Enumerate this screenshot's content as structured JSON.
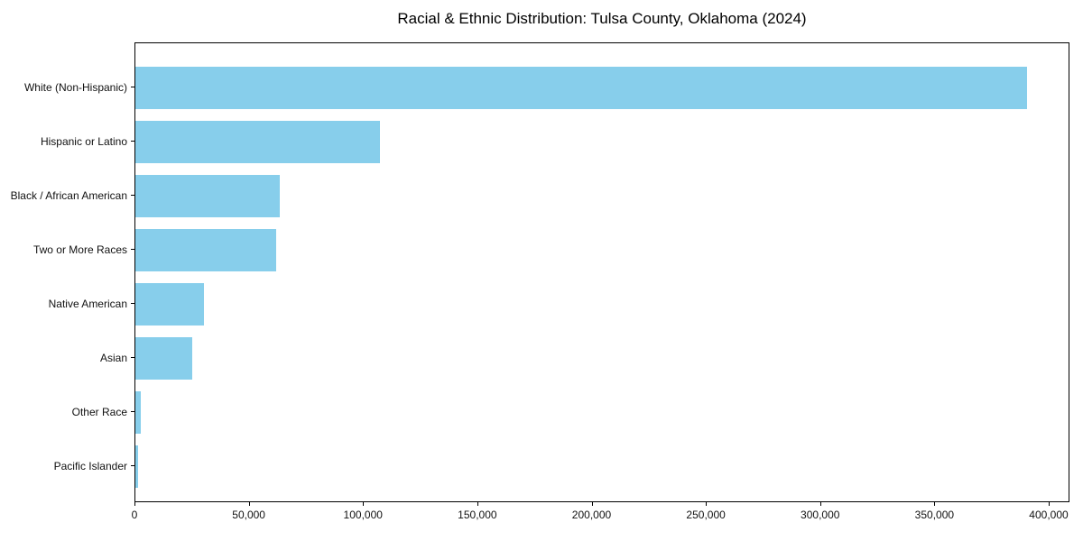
{
  "title": "Racial & Ethnic Distribution: Tulsa County, Oklahoma (2024)",
  "chart_data": {
    "type": "bar",
    "orientation": "horizontal",
    "title": "Racial & Ethnic Distribution: Tulsa County, Oklahoma (2024)",
    "categories": [
      "White (Non-Hispanic)",
      "Hispanic or Latino",
      "Black / African American",
      "Two or More Races",
      "Native American",
      "Asian",
      "Other Race",
      "Pacific Islander"
    ],
    "values": [
      390000,
      107000,
      63000,
      61500,
      30000,
      25000,
      2200,
      1200
    ],
    "x_ticks": [
      0,
      50000,
      100000,
      150000,
      200000,
      250000,
      300000,
      350000,
      400000
    ],
    "x_tick_labels": [
      "0",
      "50,000",
      "100,000",
      "150,000",
      "200,000",
      "250,000",
      "300,000",
      "350,000",
      "400,000"
    ],
    "xlim": [
      0,
      409500
    ],
    "xlabel": "",
    "ylabel": "",
    "bar_color": "#87CEEB",
    "grid": false,
    "legend": null
  }
}
